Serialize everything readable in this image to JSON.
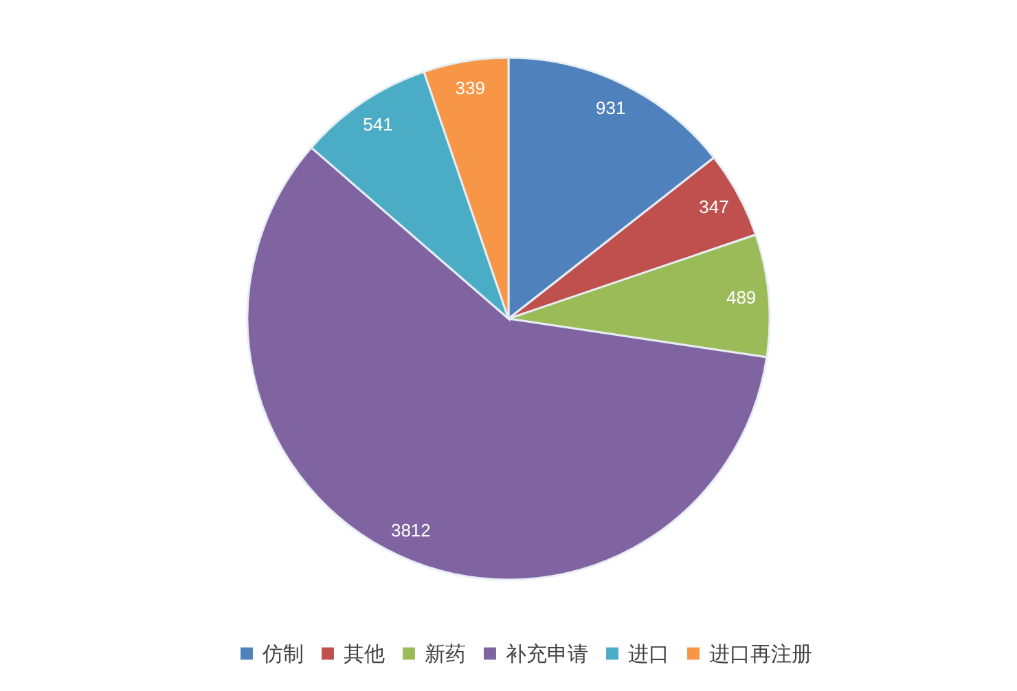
{
  "chart_data": {
    "type": "pie",
    "categories": [
      "仿制",
      "其他",
      "新药",
      "补充申请",
      "进口",
      "进口再注册"
    ],
    "values": [
      931,
      347,
      489,
      3812,
      541,
      339
    ],
    "colors": [
      "#4f81bd",
      "#c0504d",
      "#9bbb59",
      "#8064a2",
      "#4bacc6",
      "#f79646"
    ],
    "data_labels": true,
    "legend": "bottom"
  }
}
